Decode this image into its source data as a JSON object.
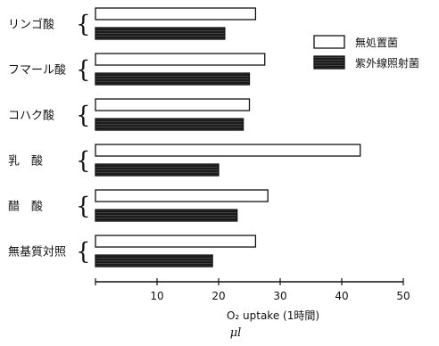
{
  "chart_data": {
    "type": "bar",
    "orientation": "horizontal",
    "categories": [
      "リンゴ酸",
      "フマール酸",
      "コハク酸",
      "乳　酸",
      "醋　酸",
      "無基質対照"
    ],
    "series": [
      {
        "name": "無処置菌",
        "values": [
          26,
          27.5,
          25,
          43,
          28,
          26
        ],
        "color": "#ffffff"
      },
      {
        "name": "紫外線照射菌",
        "values": [
          21,
          25,
          24,
          20,
          23,
          19
        ],
        "color": "#1a1a1a"
      }
    ],
    "x_ticks": [
      10,
      20,
      30,
      40,
      50
    ],
    "xlim": [
      0,
      50
    ],
    "xlabel": "O₂ uptake (1時間)",
    "xlabel_unit": "μl",
    "legend_position": "top-right",
    "grid": false
  }
}
